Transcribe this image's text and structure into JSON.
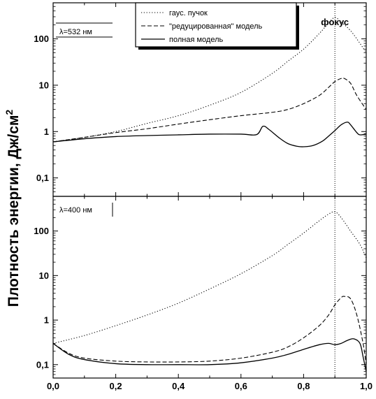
{
  "chart_data": {
    "type": "line",
    "ylabel": "Плотность энергии, Дж/см",
    "ylabel_superscript": "2",
    "x_ticks": [
      "0,0",
      "0,2",
      "0,4",
      "0,6",
      "0,8",
      "1,0"
    ],
    "xlim": [
      0,
      1
    ],
    "y_scale": "log",
    "y_ticks": [
      {
        "value": 0.1,
        "label": "0,1"
      },
      {
        "value": 1,
        "label": "1"
      },
      {
        "value": 10,
        "label": "10"
      },
      {
        "value": 100,
        "label": "100"
      }
    ],
    "focus_label": "фокус",
    "focus_x": 0.9,
    "legend": [
      {
        "label": "гаус. пучок",
        "dash": "dotted"
      },
      {
        "label": "\"редуцированная\" модель",
        "dash": "dashed"
      },
      {
        "label": "полная модель",
        "dash": "solid"
      }
    ],
    "panels": [
      {
        "annotation": "λ=532 нм",
        "ylim": [
          0.04,
          600
        ],
        "series": [
          {
            "name": "гаус. пучок",
            "dash": "dotted",
            "x": [
              0,
              0.1,
              0.2,
              0.3,
              0.4,
              0.5,
              0.6,
              0.7,
              0.75,
              0.8,
              0.85,
              0.88,
              0.9,
              0.92,
              0.95,
              0.98,
              1.0
            ],
            "y": [
              0.6,
              0.75,
              1.0,
              1.5,
              2.2,
              3.7,
              7,
              18,
              33,
              60,
              130,
              220,
              290,
              230,
              150,
              80,
              50
            ]
          },
          {
            "name": "\"редуцированная\" модель",
            "dash": "dashed",
            "x": [
              0,
              0.1,
              0.2,
              0.3,
              0.4,
              0.5,
              0.6,
              0.7,
              0.75,
              0.8,
              0.85,
              0.88,
              0.9,
              0.92,
              0.93,
              0.95,
              0.97,
              1.0
            ],
            "y": [
              0.6,
              0.75,
              0.95,
              1.15,
              1.45,
              1.8,
              2.2,
              2.6,
              3.0,
              4.0,
              6.0,
              9.0,
              12,
              14,
              14,
              11,
              6,
              3
            ]
          },
          {
            "name": "полная модель",
            "dash": "solid",
            "x": [
              0,
              0.1,
              0.2,
              0.3,
              0.4,
              0.5,
              0.6,
              0.65,
              0.67,
              0.69,
              0.72,
              0.75,
              0.78,
              0.8,
              0.83,
              0.86,
              0.88,
              0.9,
              0.92,
              0.94,
              0.95,
              0.97,
              0.98,
              1.0
            ],
            "y": [
              0.6,
              0.7,
              0.78,
              0.82,
              0.85,
              0.88,
              0.88,
              0.86,
              1.3,
              1.1,
              0.75,
              0.55,
              0.48,
              0.47,
              0.5,
              0.62,
              0.8,
              1.05,
              1.4,
              1.6,
              1.4,
              0.95,
              0.85,
              0.88
            ]
          }
        ]
      },
      {
        "annotation": "λ=400 нм",
        "ylim": [
          0.05,
          600
        ],
        "series": [
          {
            "name": "гаус. пучок",
            "dash": "dotted",
            "x": [
              0,
              0.1,
              0.2,
              0.3,
              0.4,
              0.5,
              0.6,
              0.7,
              0.75,
              0.8,
              0.85,
              0.88,
              0.9,
              0.92,
              0.95,
              0.98,
              1.0
            ],
            "y": [
              0.3,
              0.45,
              0.75,
              1.3,
              2.4,
              5,
              11,
              28,
              50,
              90,
              170,
              240,
              270,
              200,
              100,
              50,
              25
            ]
          },
          {
            "name": "\"редуцированная\" модель",
            "dash": "dashed",
            "x": [
              0,
              0.05,
              0.1,
              0.2,
              0.3,
              0.4,
              0.5,
              0.6,
              0.7,
              0.75,
              0.8,
              0.85,
              0.88,
              0.9,
              0.92,
              0.93,
              0.95,
              0.97,
              0.99,
              1.0
            ],
            "y": [
              0.3,
              0.18,
              0.14,
              0.12,
              0.115,
              0.115,
              0.12,
              0.14,
              0.19,
              0.25,
              0.4,
              0.75,
              1.3,
              2.2,
              3.2,
              3.4,
              3.0,
              1.3,
              0.3,
              0.1
            ]
          },
          {
            "name": "полная модель",
            "dash": "solid",
            "x": [
              0,
              0.05,
              0.1,
              0.2,
              0.3,
              0.4,
              0.5,
              0.6,
              0.7,
              0.75,
              0.8,
              0.85,
              0.88,
              0.9,
              0.92,
              0.94,
              0.96,
              0.98,
              0.99,
              1.0
            ],
            "y": [
              0.3,
              0.17,
              0.13,
              0.105,
              0.1,
              0.1,
              0.1,
              0.11,
              0.14,
              0.17,
              0.22,
              0.28,
              0.3,
              0.28,
              0.3,
              0.35,
              0.38,
              0.3,
              0.15,
              0.07
            ]
          }
        ]
      }
    ]
  }
}
